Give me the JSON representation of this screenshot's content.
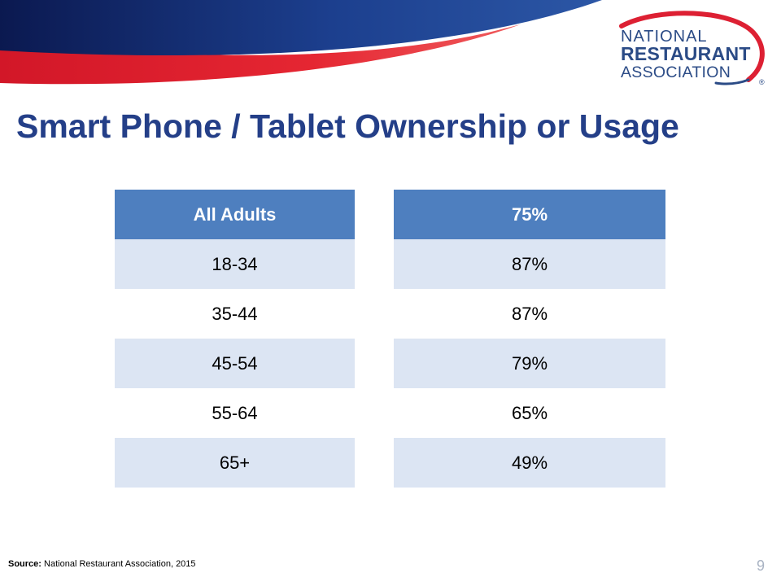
{
  "logo": {
    "line1": "NATIONAL",
    "line2": "RESTAURANT",
    "line3": "ASSOCIATION",
    "registered": "®"
  },
  "title": "Smart Phone / Tablet Ownership or Usage",
  "table": {
    "rows": [
      {
        "label": "All Adults",
        "value": "75%"
      },
      {
        "label": "18-34",
        "value": "87%"
      },
      {
        "label": "35-44",
        "value": "87%"
      },
      {
        "label": "45-54",
        "value": "79%"
      },
      {
        "label": "55-64",
        "value": "65%"
      },
      {
        "label": "65+",
        "value": "49%"
      }
    ]
  },
  "footer": {
    "source_label": "Source:",
    "source_text": "National Restaurant Association, 2015",
    "page_number": "9"
  },
  "colors": {
    "title": "#243f88",
    "header_fill": "#4e7fbf",
    "row_shade": "#dce5f3",
    "banner_navy": "#0d1f5c",
    "banner_red": "#e01f2d",
    "logo_blue": "#2b4b86"
  }
}
